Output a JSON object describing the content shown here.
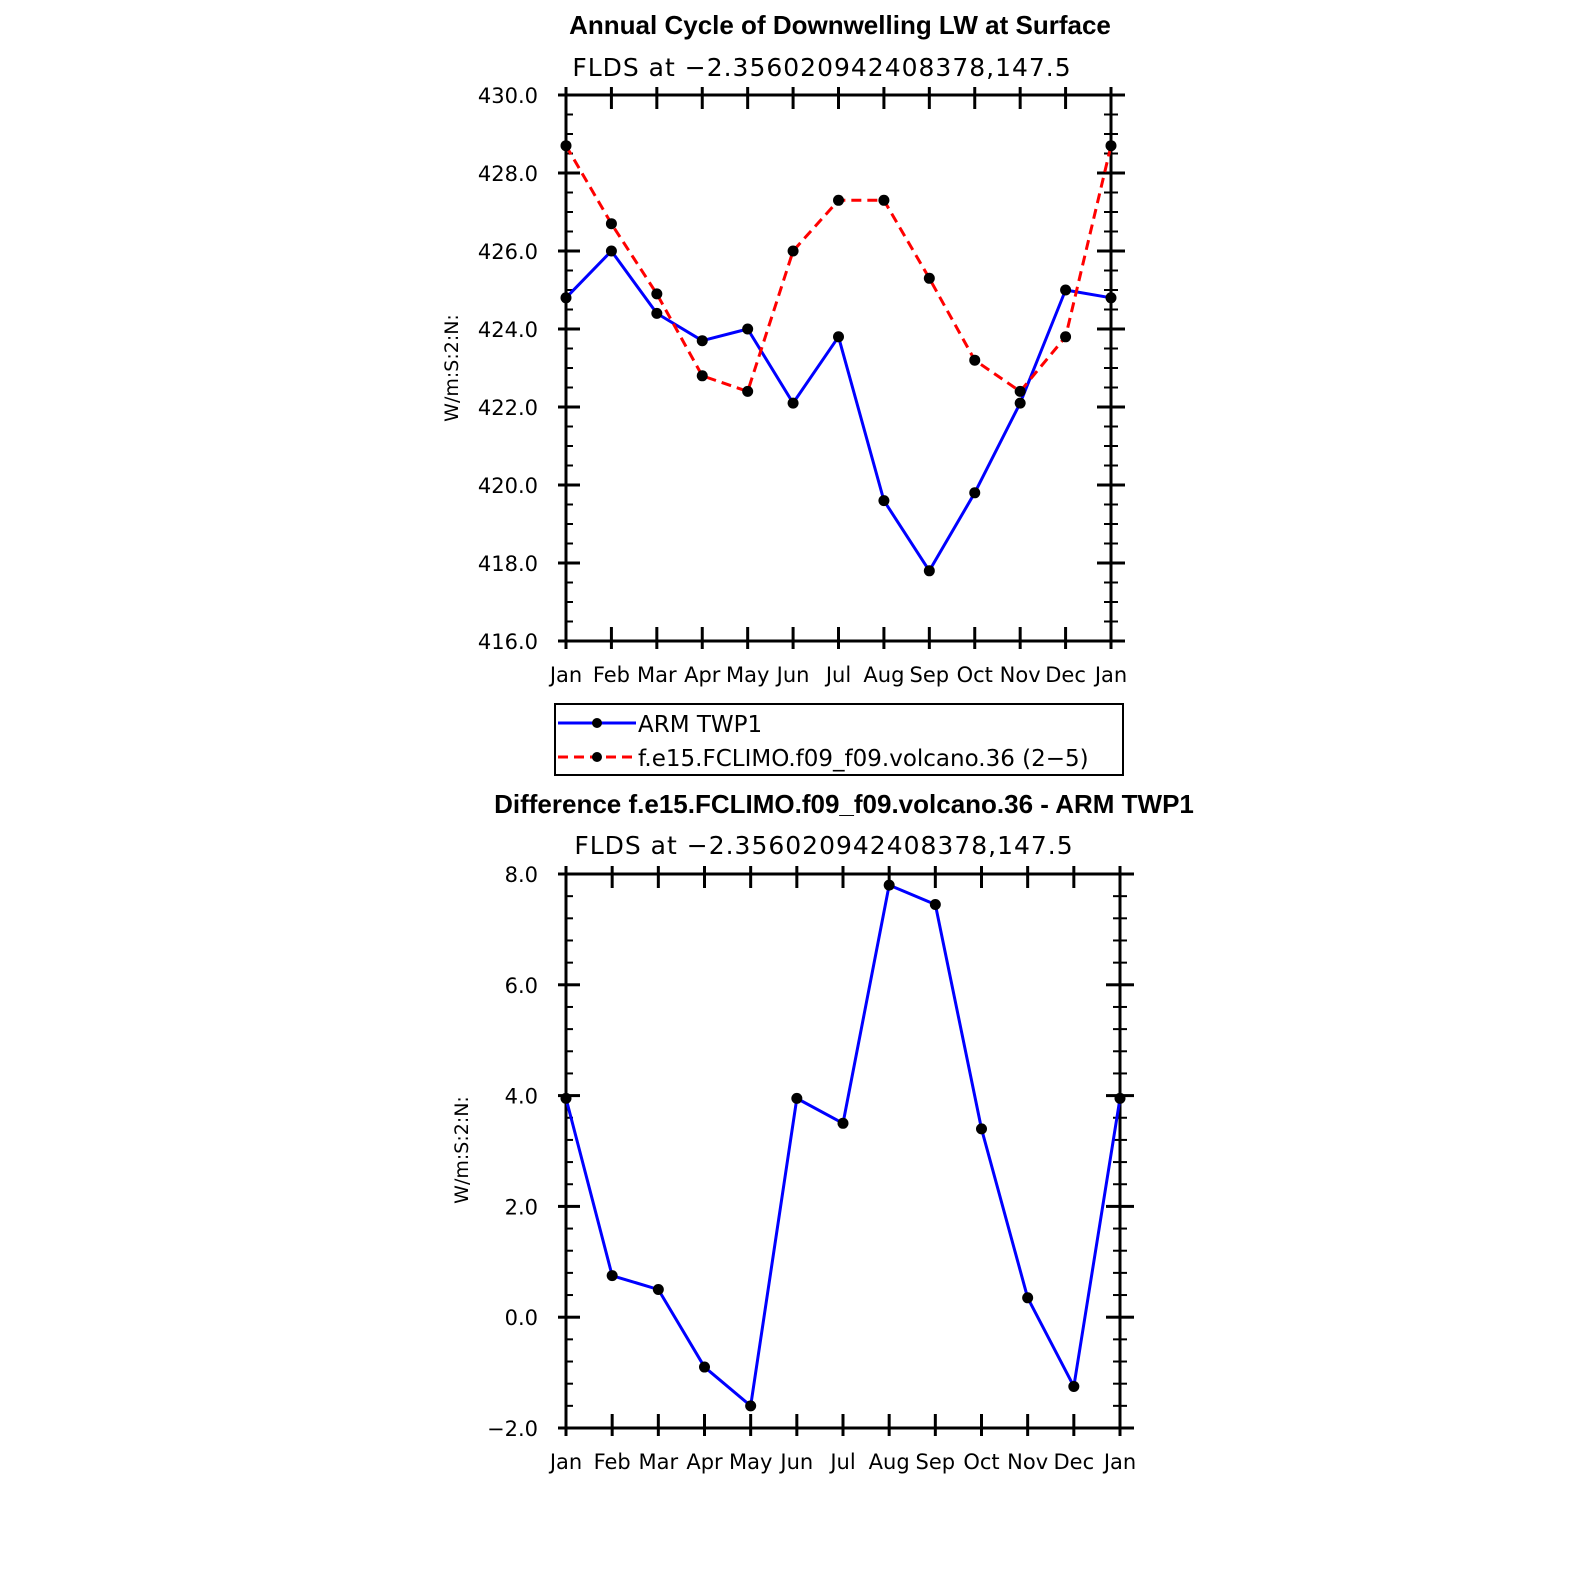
{
  "chart_data": [
    {
      "type": "line",
      "title": "Annual Cycle of Downwelling LW at Surface",
      "subtitle": "FLDS at −2.356020942408378,147.5",
      "xlabel": "",
      "ylabel": "W/m:S:2:N:",
      "categories": [
        "Jan",
        "Feb",
        "Mar",
        "Apr",
        "May",
        "Jun",
        "Jul",
        "Aug",
        "Sep",
        "Oct",
        "Nov",
        "Dec",
        "Jan"
      ],
      "ylim": [
        416.0,
        430.0
      ],
      "yticks": [
        "416.0",
        "418.0",
        "420.0",
        "422.0",
        "424.0",
        "426.0",
        "428.0",
        "430.0"
      ],
      "ytick_values": [
        416,
        418,
        420,
        422,
        424,
        426,
        428,
        430
      ],
      "grid": false,
      "legend_position": "bottom",
      "series": [
        {
          "name": "ARM TWP1",
          "color": "#0000ff",
          "dash": "solid",
          "values": [
            424.8,
            426.0,
            424.4,
            423.7,
            424.0,
            422.1,
            423.8,
            419.6,
            417.8,
            419.8,
            422.1,
            425.0,
            424.8
          ]
        },
        {
          "name": "f.e15.FCLIMO.f09_f09.volcano.36 (2−5)",
          "color": "#ff0000",
          "dash": "dashed",
          "values": [
            428.7,
            426.7,
            424.9,
            422.8,
            422.4,
            426.0,
            427.3,
            427.3,
            425.3,
            423.2,
            422.4,
            423.8,
            428.7
          ]
        }
      ]
    },
    {
      "type": "line",
      "title": "Difference f.e15.FCLIMO.f09_f09.volcano.36 - ARM TWP1",
      "subtitle": "FLDS at −2.356020942408378,147.5",
      "xlabel": "",
      "ylabel": "W/m:S:2:N:",
      "categories": [
        "Jan",
        "Feb",
        "Mar",
        "Apr",
        "May",
        "Jun",
        "Jul",
        "Aug",
        "Sep",
        "Oct",
        "Nov",
        "Dec",
        "Jan"
      ],
      "ylim": [
        -2.0,
        8.0
      ],
      "yticks": [
        "−2.0",
        "0.0",
        "2.0",
        "4.0",
        "6.0",
        "8.0"
      ],
      "ytick_values": [
        -2,
        0,
        2,
        4,
        6,
        8
      ],
      "grid": false,
      "series": [
        {
          "color": "#0000ff",
          "dash": "solid",
          "values": [
            3.95,
            0.75,
            0.5,
            -0.9,
            -1.6,
            3.95,
            3.5,
            7.8,
            7.45,
            3.4,
            0.35,
            -1.25,
            3.95
          ]
        }
      ]
    }
  ]
}
